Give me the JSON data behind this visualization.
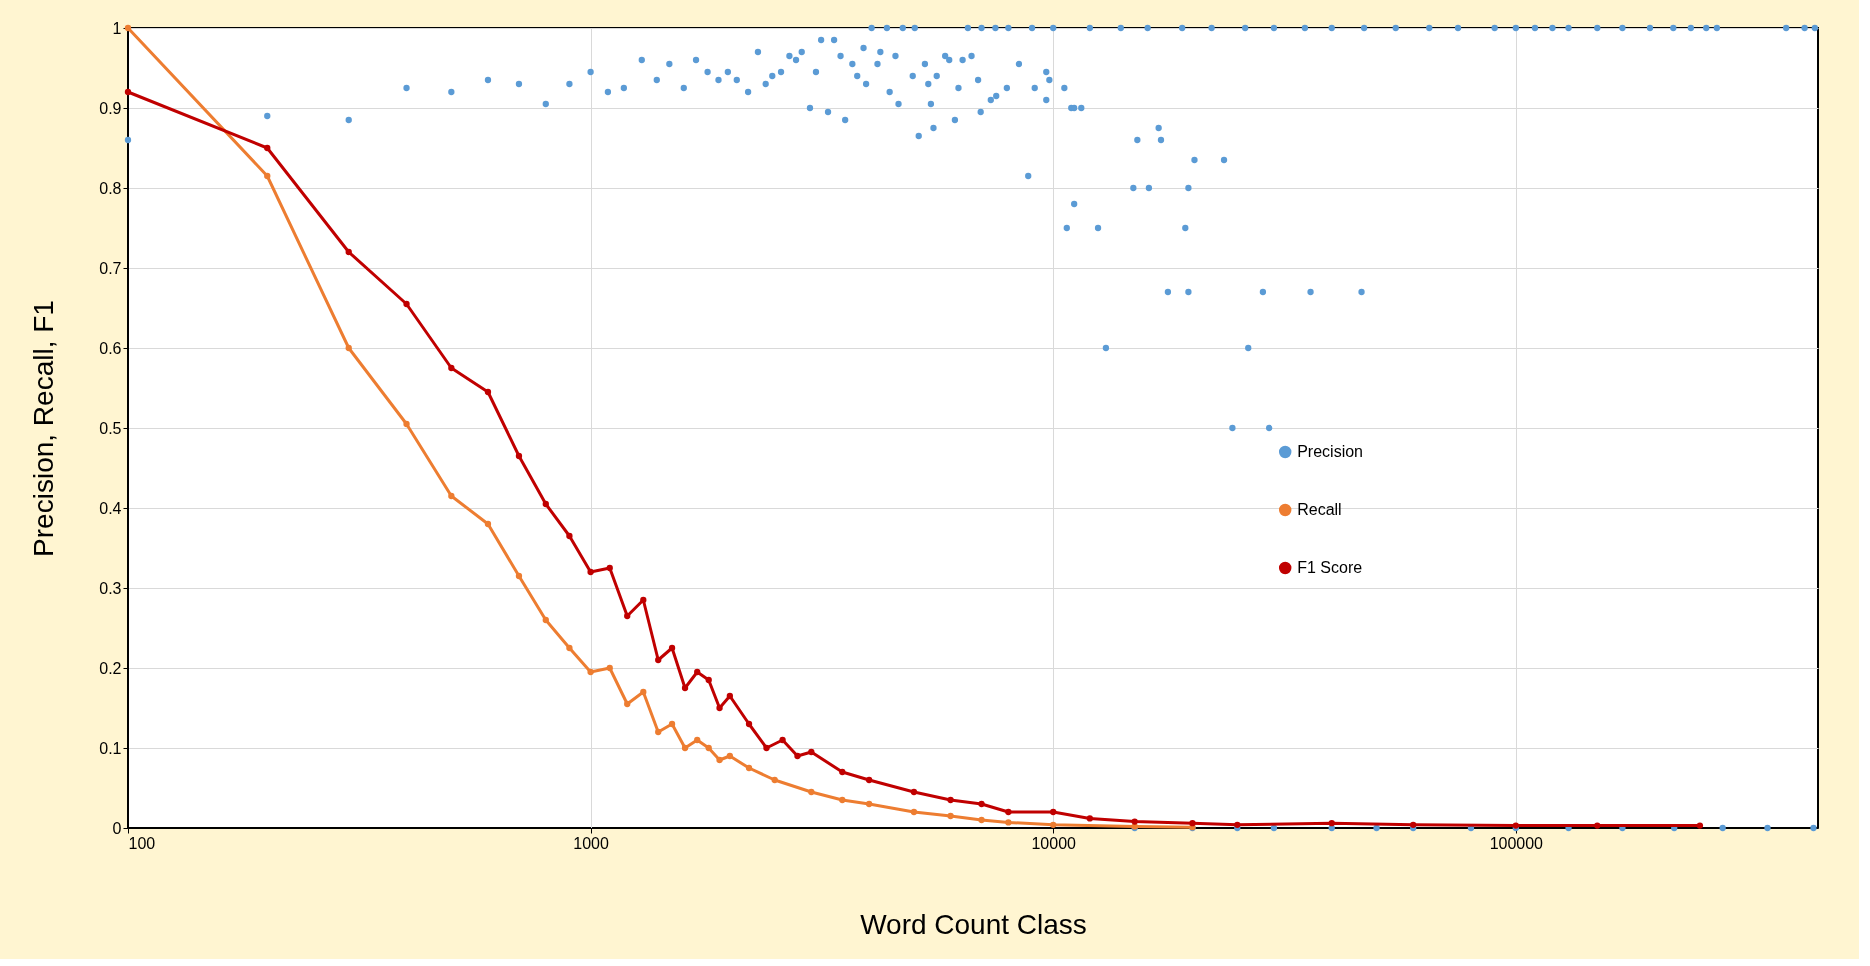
{
  "chart_data": {
    "type": "line",
    "xlabel": "Word Count Class",
    "ylabel": "Precision, Recall, F1",
    "log": "x",
    "xlim": [
      100,
      450000
    ],
    "xticks": [
      100,
      1000,
      10000,
      100000
    ],
    "ylim": [
      0,
      1
    ],
    "yticks": [
      0,
      0.1,
      0.2,
      0.3,
      0.4,
      0.5,
      0.6,
      0.7,
      0.8,
      0.9,
      1
    ],
    "grid": true,
    "legend": "right",
    "marker": "circle",
    "line_style": "solid",
    "series": [
      {
        "name": "Precision",
        "type": "scatter",
        "color": "#5b9bd5",
        "x": [
          100,
          200,
          300,
          400,
          500,
          600,
          700,
          800,
          900,
          1000,
          1090,
          1180,
          1290,
          1390,
          1480,
          1590,
          1690,
          1790,
          1890,
          1980,
          2070,
          2190,
          2300,
          2390,
          2470,
          2580,
          2690,
          2780,
          2860,
          2980,
          3070,
          3150,
          3260,
          3360,
          3470,
          3550,
          3680,
          3770,
          3890,
          3940,
          4050,
          4170,
          4230,
          4370,
          4430,
          4560,
          4630,
          4730,
          4970,
          5020,
          5120,
          5280,
          5370,
          5440,
          5510,
          5600,
          5840,
          5960,
          6130,
          6240,
          6370,
          6540,
          6660,
          6880,
          6970,
          7330,
          7530,
          7940,
          8430,
          8830,
          9120,
          9660,
          9660,
          9810,
          10570,
          10940,
          11500,
          11100,
          10700,
          12500,
          13000,
          11100,
          16900,
          15200,
          17100,
          20200,
          23400,
          14900,
          16100,
          19600,
          19300,
          17700,
          19600,
          28400,
          36000,
          46400,
          26400,
          24400,
          29300,
          7000,
          7500,
          8000,
          9000,
          10000,
          12000,
          14000,
          16000,
          19000,
          22000,
          26000,
          30000,
          35000,
          40000,
          47000,
          55000,
          65000,
          75000,
          90000,
          100000,
          110000,
          120000,
          130000,
          150000,
          170000,
          195000,
          219000,
          239000,
          258000,
          272000,
          384000,
          421000,
          443000,
          15000,
          20000,
          25000,
          30000,
          40000,
          50000,
          60000,
          80000,
          100000,
          130000,
          170000,
          220000,
          280000,
          350000,
          440000
        ],
        "values": [
          0.86,
          0.89,
          0.885,
          0.925,
          0.92,
          0.935,
          0.93,
          0.905,
          0.93,
          0.945,
          0.92,
          0.925,
          0.96,
          0.935,
          0.955,
          0.925,
          0.96,
          0.945,
          0.935,
          0.945,
          0.935,
          0.92,
          0.97,
          0.93,
          0.94,
          0.945,
          0.965,
          0.96,
          0.97,
          0.9,
          0.945,
          0.985,
          0.895,
          0.985,
          0.965,
          0.885,
          0.955,
          0.94,
          0.975,
          0.93,
          1,
          0.955,
          0.97,
          1,
          0.92,
          0.965,
          0.905,
          1,
          0.94,
          1,
          0.865,
          0.955,
          0.93,
          0.905,
          0.875,
          0.94,
          0.965,
          0.96,
          0.885,
          0.925,
          0.96,
          1,
          0.965,
          0.935,
          0.895,
          0.91,
          0.915,
          0.925,
          0.955,
          0.815,
          0.925,
          0.945,
          0.91,
          0.935,
          0.925,
          0.9,
          0.9,
          0.78,
          0.75,
          0.75,
          0.6,
          0.9,
          0.875,
          0.86,
          0.86,
          0.835,
          0.835,
          0.8,
          0.8,
          0.8,
          0.75,
          0.67,
          0.67,
          0.67,
          0.67,
          0.67,
          0.6,
          0.5,
          0.5,
          1,
          1,
          1,
          1,
          1,
          1,
          1,
          1,
          1,
          1,
          1,
          1,
          1,
          1,
          1,
          1,
          1,
          1,
          1,
          1,
          1,
          1,
          1,
          1,
          1,
          1,
          1,
          1,
          1,
          1,
          1,
          1,
          1,
          0,
          0,
          0,
          0,
          0,
          0,
          0,
          0,
          0,
          0,
          0,
          0,
          0,
          0,
          0
        ]
      },
      {
        "name": "Recall",
        "color": "#ed7d31",
        "x": [
          100,
          200,
          300,
          400,
          500,
          600,
          700,
          800,
          900,
          1000,
          1100,
          1200,
          1300,
          1400,
          1500,
          1600,
          1700,
          1800,
          1900,
          2000,
          2200,
          2500,
          3000,
          3500,
          4000,
          5000,
          6000,
          7000,
          8000,
          10000,
          15000,
          20000
        ],
        "values": [
          1,
          0.815,
          0.6,
          0.505,
          0.415,
          0.38,
          0.315,
          0.26,
          0.225,
          0.195,
          0.2,
          0.155,
          0.17,
          0.12,
          0.13,
          0.1,
          0.11,
          0.1,
          0.085,
          0.09,
          0.075,
          0.06,
          0.045,
          0.035,
          0.03,
          0.02,
          0.015,
          0.01,
          0.007,
          0.004,
          0.002,
          0.001
        ]
      },
      {
        "name": "F1 Score",
        "color": "#c00000",
        "x": [
          100,
          200,
          300,
          400,
          500,
          600,
          700,
          800,
          900,
          1000,
          1100,
          1200,
          1300,
          1400,
          1500,
          1600,
          1700,
          1800,
          1900,
          2000,
          2200,
          2400,
          2600,
          2800,
          3000,
          3500,
          4000,
          5000,
          6000,
          7000,
          8000,
          10000,
          12000,
          15000,
          20000,
          25000,
          40000,
          60000,
          100000,
          150000,
          250000
        ],
        "values": [
          0.92,
          0.85,
          0.72,
          0.655,
          0.575,
          0.545,
          0.465,
          0.405,
          0.365,
          0.32,
          0.325,
          0.265,
          0.285,
          0.21,
          0.225,
          0.175,
          0.195,
          0.185,
          0.15,
          0.165,
          0.13,
          0.1,
          0.11,
          0.09,
          0.095,
          0.07,
          0.06,
          0.045,
          0.035,
          0.03,
          0.02,
          0.02,
          0.012,
          0.008,
          0.006,
          0.004,
          0.006,
          0.004,
          0.003,
          0.003,
          0.003
        ]
      }
    ]
  }
}
